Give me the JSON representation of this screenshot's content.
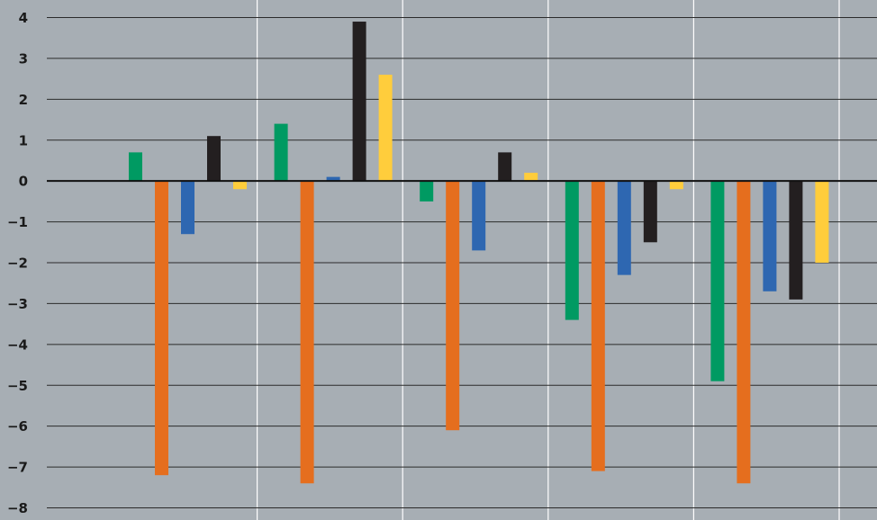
{
  "chart_data": {
    "type": "bar",
    "background": "#a7aeb4",
    "grid": true,
    "legend": "none",
    "ylim": [
      -8,
      4
    ],
    "yticks": [
      "4",
      "3",
      "2",
      "1",
      "0",
      "−1",
      "−2",
      "−3",
      "−4",
      "−5",
      "−6",
      "−7",
      "−8"
    ],
    "categories": [
      "",
      "",
      "",
      "",
      ""
    ],
    "series": [
      {
        "color": "#009a62",
        "values": [
          0.7,
          1.4,
          -0.5,
          -3.4,
          -4.9
        ]
      },
      {
        "color": "#e56e1e",
        "values": [
          -7.2,
          -7.4,
          -6.1,
          -7.1,
          -7.4
        ]
      },
      {
        "color": "#2e67b1",
        "values": [
          -1.3,
          0.1,
          -1.7,
          -2.3,
          -2.7
        ]
      },
      {
        "color": "#231f20",
        "values": [
          1.1,
          3.9,
          0.7,
          -1.5,
          -2.9
        ]
      },
      {
        "color": "#ffcd3c",
        "values": [
          -0.2,
          2.6,
          0.2,
          -0.2,
          -2.0
        ]
      }
    ]
  }
}
